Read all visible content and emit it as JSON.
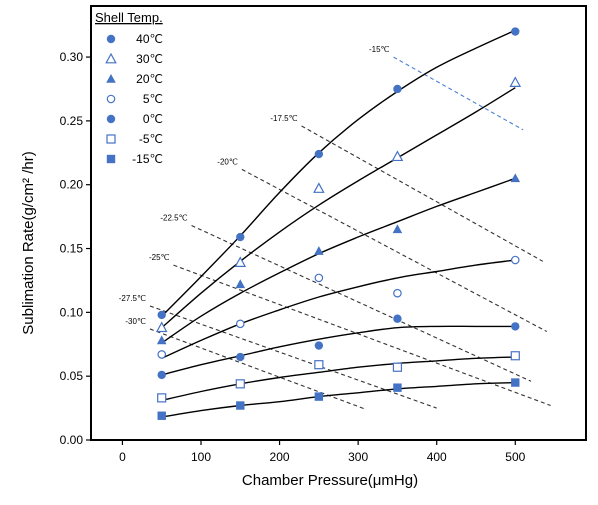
{
  "chart_data": {
    "type": "scatter",
    "xlabel": "Chamber Pressure(μmHg)",
    "ylabel": "Sublimation Rate(g/cm² /hr)",
    "xlim": [
      -40,
      590
    ],
    "ylim": [
      0.0,
      0.34
    ],
    "x_ticks": [
      0,
      100,
      200,
      300,
      400,
      500
    ],
    "y_ticks": [
      "0.00",
      "0.05",
      "0.10",
      "0.15",
      "0.20",
      "0.25",
      "0.30"
    ],
    "legend": {
      "title": "Shell Temp.",
      "placement": "top-left"
    },
    "colors": {
      "marker": "#4472c4",
      "isotherm_dashed": "#333333",
      "isotherm_blue": "#4a7fd0",
      "curve": "#000000"
    },
    "series": [
      {
        "name": "40℃",
        "marker": "filled-octagon",
        "x": [
          50,
          150,
          250,
          350,
          500
        ],
        "y": [
          0.098,
          0.159,
          0.224,
          0.275,
          0.32
        ]
      },
      {
        "name": "30℃",
        "marker": "open-triangle",
        "x": [
          50,
          150,
          250,
          350,
          500
        ],
        "y": [
          0.088,
          0.139,
          0.197,
          0.222,
          0.28
        ]
      },
      {
        "name": "20℃",
        "marker": "filled-triangle",
        "x": [
          50,
          150,
          250,
          350,
          500
        ],
        "y": [
          0.078,
          0.122,
          0.148,
          0.165,
          0.205
        ]
      },
      {
        "name": "5℃",
        "marker": "open-circle",
        "x": [
          50,
          150,
          250,
          350,
          500
        ],
        "y": [
          0.067,
          0.091,
          0.127,
          0.115,
          0.141
        ]
      },
      {
        "name": "0℃",
        "marker": "filled-circle",
        "x": [
          50,
          150,
          250,
          350,
          500
        ],
        "y": [
          0.051,
          0.065,
          0.074,
          0.095,
          0.089
        ]
      },
      {
        "name": "-5℃",
        "marker": "open-square",
        "x": [
          50,
          150,
          250,
          350,
          500
        ],
        "y": [
          0.033,
          0.044,
          0.059,
          0.057,
          0.066
        ]
      },
      {
        "name": "-15℃",
        "marker": "filled-square",
        "x": [
          50,
          150,
          250,
          350,
          500
        ],
        "y": [
          0.019,
          0.027,
          0.034,
          0.041,
          0.045
        ]
      }
    ],
    "fit_curves": [
      {
        "x": [
          50,
          100,
          150,
          200,
          250,
          300,
          350,
          400,
          450,
          500
        ],
        "y": [
          0.097,
          0.128,
          0.16,
          0.194,
          0.225,
          0.251,
          0.273,
          0.292,
          0.307,
          0.321
        ]
      },
      {
        "x": [
          50,
          100,
          150,
          200,
          250,
          300,
          350,
          400,
          450,
          500
        ],
        "y": [
          0.088,
          0.115,
          0.14,
          0.163,
          0.184,
          0.203,
          0.221,
          0.239,
          0.257,
          0.276
        ]
      },
      {
        "x": [
          50,
          100,
          150,
          200,
          250,
          300,
          350,
          400,
          450,
          500
        ],
        "y": [
          0.076,
          0.097,
          0.115,
          0.131,
          0.146,
          0.159,
          0.171,
          0.183,
          0.194,
          0.205
        ]
      },
      {
        "x": [
          50,
          100,
          150,
          200,
          250,
          300,
          350,
          400,
          450,
          500
        ],
        "y": [
          0.064,
          0.078,
          0.091,
          0.102,
          0.112,
          0.12,
          0.127,
          0.132,
          0.137,
          0.141
        ]
      },
      {
        "x": [
          50,
          100,
          150,
          200,
          250,
          300,
          350,
          400,
          450,
          500
        ],
        "y": [
          0.051,
          0.059,
          0.066,
          0.073,
          0.079,
          0.084,
          0.088,
          0.089,
          0.089,
          0.089
        ]
      },
      {
        "x": [
          50,
          100,
          150,
          200,
          250,
          300,
          350,
          400,
          450,
          500
        ],
        "y": [
          0.031,
          0.038,
          0.044,
          0.049,
          0.053,
          0.057,
          0.06,
          0.062,
          0.064,
          0.065
        ]
      },
      {
        "x": [
          50,
          100,
          150,
          200,
          250,
          300,
          350,
          400,
          450,
          500
        ],
        "y": [
          0.018,
          0.023,
          0.027,
          0.03,
          0.034,
          0.037,
          0.04,
          0.042,
          0.044,
          0.045
        ]
      }
    ],
    "isotherms": [
      {
        "label": "-15℃",
        "style": "blue",
        "x": [
          345,
          510
        ],
        "y": [
          0.3,
          0.243
        ]
      },
      {
        "label": "-17.5℃",
        "style": "dashed",
        "x": [
          228,
          535
        ],
        "y": [
          0.246,
          0.14
        ]
      },
      {
        "label": "-20℃",
        "style": "dashed",
        "x": [
          152,
          540
        ],
        "y": [
          0.212,
          0.085
        ]
      },
      {
        "label": "-22.5℃",
        "style": "dashed",
        "x": [
          88,
          520
        ],
        "y": [
          0.168,
          0.046
        ]
      },
      {
        "label": "-25℃",
        "style": "dashed",
        "x": [
          65,
          545
        ],
        "y": [
          0.137,
          0.027
        ]
      },
      {
        "label": "-27.5℃",
        "style": "dashed",
        "x": [
          35,
          400
        ],
        "y": [
          0.105,
          0.025
        ]
      },
      {
        "label": "-30℃",
        "style": "dashed",
        "x": [
          35,
          310
        ],
        "y": [
          0.087,
          0.024
        ]
      }
    ]
  }
}
